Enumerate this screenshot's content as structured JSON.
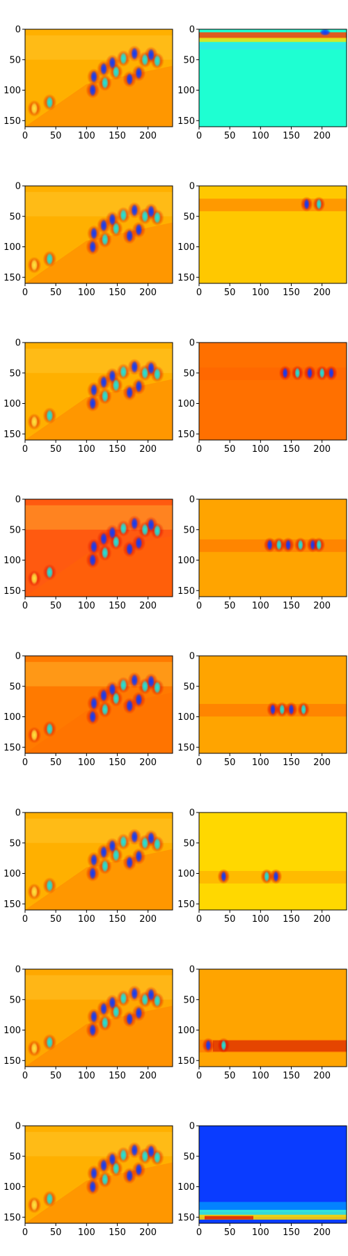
{
  "chart_data": {
    "type": "heatmap",
    "layout": {
      "rows": 8,
      "columns": 2
    },
    "colormap": "jet",
    "x_axis": {
      "ticks": [
        0,
        50,
        100,
        150,
        200
      ],
      "range": [
        0,
        240
      ]
    },
    "y_axis": {
      "ticks": [
        0,
        50,
        100,
        150
      ],
      "range": [
        0,
        160
      ],
      "inverted": true
    },
    "rows": [
      {
        "left": {
          "background": "#ffb000",
          "focus_band_y": null
        },
        "right": {
          "background": "#1effd2",
          "focus_band_y": 10,
          "note": "activation concentrated in top band"
        }
      },
      {
        "left": {
          "background": "#ffb000",
          "focus_band_y": null
        },
        "right": {
          "background": "#ffc800",
          "focus_band_y": 30,
          "blobs_x": [
            175,
            195
          ]
        }
      },
      {
        "left": {
          "background": "#ffb000",
          "focus_band_y": null
        },
        "right": {
          "background": "#ff7000",
          "focus_band_y": 50,
          "blobs_x": [
            140,
            160,
            180,
            200,
            215
          ]
        }
      },
      {
        "left": {
          "background": "#ff5a10",
          "focus_band_y": null
        },
        "right": {
          "background": "#ffa400",
          "focus_band_y": 75,
          "blobs_x": [
            115,
            130,
            145,
            165,
            185,
            195
          ]
        }
      },
      {
        "left": {
          "background": "#ff7a00",
          "focus_band_y": null
        },
        "right": {
          "background": "#ffa400",
          "focus_band_y": 88,
          "blobs_x": [
            120,
            135,
            150,
            170
          ]
        }
      },
      {
        "left": {
          "background": "#ffb000",
          "focus_band_y": null
        },
        "right": {
          "background": "#ffd800",
          "focus_band_y": 105,
          "blobs_x": [
            40,
            110,
            125
          ]
        }
      },
      {
        "left": {
          "background": "#ffa800",
          "focus_band_y": null
        },
        "right": {
          "background": "#ffa400",
          "focus_band_y": 125,
          "blobs_x": [
            15,
            40
          ]
        }
      },
      {
        "left": {
          "background": "#ffb000",
          "focus_band_y": null
        },
        "right": {
          "background": "#0a3cff",
          "focus_band_y": 148,
          "note": "activation concentrated in bottom band"
        }
      }
    ],
    "left_pattern_blobs": [
      {
        "x": 112,
        "y": 78,
        "color": "#1a3fff"
      },
      {
        "x": 110,
        "y": 100,
        "color": "#1a5fff"
      },
      {
        "x": 128,
        "y": 65,
        "color": "#0a50ff"
      },
      {
        "x": 130,
        "y": 88,
        "color": "#1f9fff"
      },
      {
        "x": 142,
        "y": 55,
        "color": "#1a3fff"
      },
      {
        "x": 148,
        "y": 70,
        "color": "#16e0e0"
      },
      {
        "x": 160,
        "y": 48,
        "color": "#2fd8ff"
      },
      {
        "x": 170,
        "y": 82,
        "color": "#0b40ff"
      },
      {
        "x": 178,
        "y": 40,
        "color": "#1f7fff"
      },
      {
        "x": 185,
        "y": 72,
        "color": "#0a45ff"
      },
      {
        "x": 195,
        "y": 50,
        "color": "#1ad8e8"
      },
      {
        "x": 205,
        "y": 42,
        "color": "#1a3fff"
      },
      {
        "x": 215,
        "y": 52,
        "color": "#2fe0e0"
      },
      {
        "x": 40,
        "y": 120,
        "color": "#5fd8ff"
      },
      {
        "x": 15,
        "y": 130,
        "color": "#ffe040"
      }
    ]
  }
}
